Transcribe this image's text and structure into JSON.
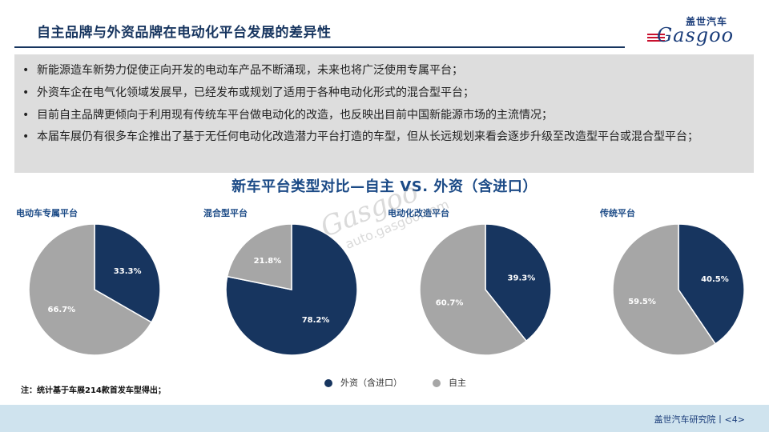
{
  "header": {
    "title": "自主品牌与外资品牌在电动化平台发展的差异性",
    "logo_cn": "盖世汽车",
    "logo_en": "Gasgoo"
  },
  "bullets": [
    "新能源造车新势力促使正向开发的电动车产品不断涌现，未来也将广泛使用专属平台；",
    "外资车企在电气化领域发展早，已经发布或规划了适用于各种电动化形式的混合型平台；",
    "目前自主品牌更倾向于利用现有传统车平台做电动化的改造，也反映出目前中国新能源市场的主流情况；",
    "本届车展仍有很多车企推出了基于无任何电动化改造潜力平台打造的车型，但从长远规划来看会逐步升级至改造型平台或混合型平台；"
  ],
  "watermark": {
    "logo_en": "Gasgoo",
    "logo_cn": "盖世汽车",
    "url": "auto.gasgoo.com"
  },
  "colors": {
    "foreign": "#17355f",
    "domestic": "#a6a6a6",
    "title": "#1b4a86",
    "footer_bg": "#cfe3ee"
  },
  "chart_data": {
    "type": "pie",
    "title": "新车平台类型对比—自主 VS. 外资（含进口）",
    "series_labels": [
      "外资（含进口）",
      "自主"
    ],
    "charts": [
      {
        "name": "电动车专属平台",
        "values": [
          33.3,
          66.7
        ],
        "labels": [
          "33.3%",
          "66.7%"
        ]
      },
      {
        "name": "混合型平台",
        "values": [
          78.2,
          21.8
        ],
        "labels": [
          "78.2%",
          "21.8%"
        ]
      },
      {
        "name": "电动化改造平台",
        "values": [
          39.3,
          60.7
        ],
        "labels": [
          "39.3%",
          "60.7%"
        ]
      },
      {
        "name": "传统平台",
        "values": [
          40.5,
          59.5
        ],
        "labels": [
          "40.5%",
          "59.5%"
        ]
      }
    ]
  },
  "note": "注：统计基于车展214款首发车型得出；",
  "footer": {
    "text": "盖世汽车研究院丨<4>"
  }
}
